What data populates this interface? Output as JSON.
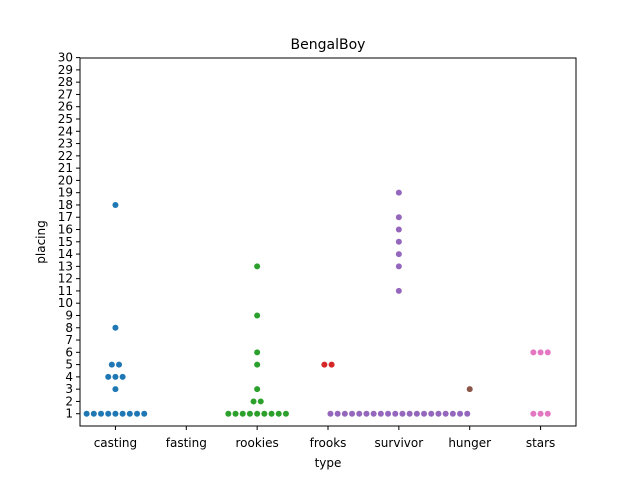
{
  "chart_data": {
    "type": "scatter",
    "title": "BengalBoy",
    "xlabel": "type",
    "ylabel": "placing",
    "categories": [
      "casting",
      "fasting",
      "rookies",
      "frooks",
      "survivor",
      "hunger",
      "stars"
    ],
    "ylim": [
      0,
      30
    ],
    "yticks": [
      1,
      2,
      3,
      4,
      5,
      6,
      7,
      8,
      9,
      10,
      11,
      12,
      13,
      14,
      15,
      16,
      17,
      18,
      19,
      20,
      21,
      22,
      23,
      24,
      25,
      26,
      27,
      28,
      29,
      30
    ],
    "grid": false,
    "series": [
      {
        "category": "casting",
        "color": "#1f77b4",
        "values": [
          18,
          8,
          5,
          5,
          4,
          4,
          4,
          3,
          1,
          1,
          1,
          1,
          1,
          1,
          1,
          1,
          1
        ]
      },
      {
        "category": "fasting",
        "color": "#ff7f0e",
        "values": []
      },
      {
        "category": "rookies",
        "color": "#2ca02c",
        "values": [
          13,
          9,
          6,
          5,
          3,
          2,
          2,
          1,
          1,
          1,
          1,
          1,
          1,
          1,
          1,
          1
        ]
      },
      {
        "category": "frooks",
        "color": "#d62728",
        "values": [
          5,
          5
        ]
      },
      {
        "category": "survivor",
        "color": "#9467bd",
        "values": [
          19,
          17,
          16,
          15,
          14,
          13,
          11,
          1,
          1,
          1,
          1,
          1,
          1,
          1,
          1,
          1,
          1,
          1,
          1,
          1,
          1,
          1,
          1,
          1,
          1,
          1,
          1
        ]
      },
      {
        "category": "hunger",
        "color": "#8c564b",
        "values": [
          3
        ]
      },
      {
        "category": "stars",
        "color": "#e377c2",
        "values": [
          6,
          6,
          6,
          1,
          1,
          1
        ]
      }
    ]
  }
}
